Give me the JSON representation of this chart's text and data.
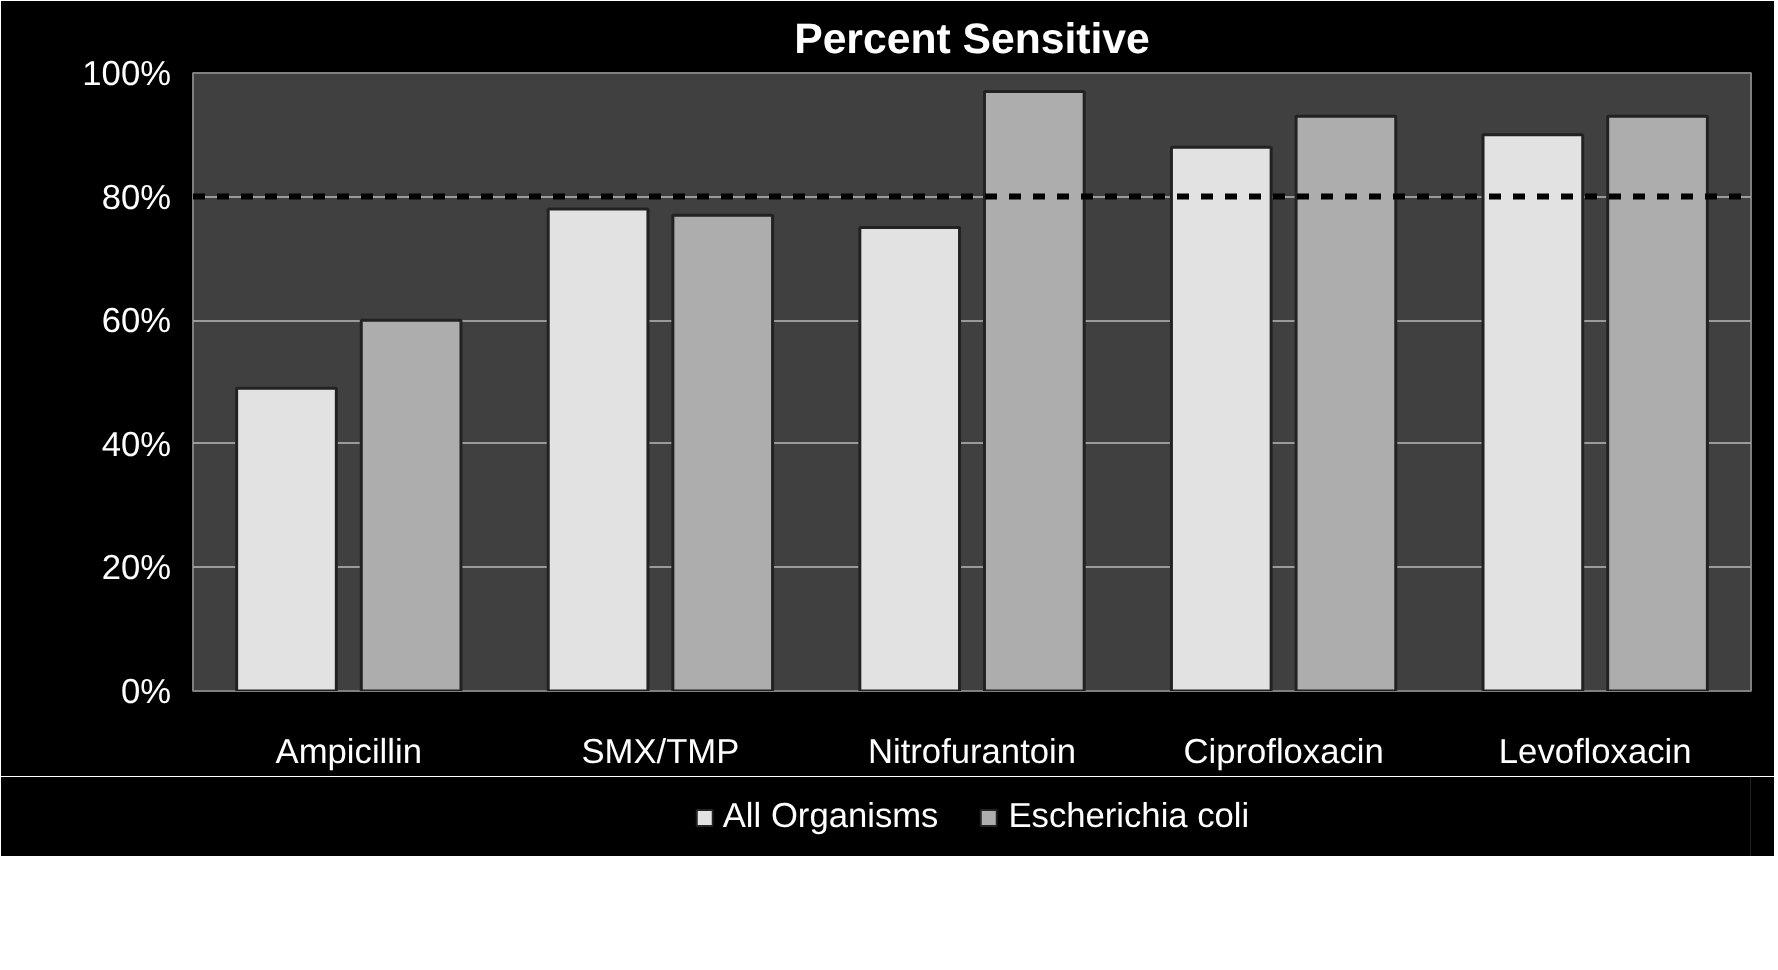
{
  "chart_data": {
    "type": "bar",
    "title": "Percent Sensitive",
    "categories": [
      "Ampicillin",
      "SMX/TMP",
      "Nitrofurantoin",
      "Ciprofloxacin",
      "Levofloxacin"
    ],
    "series": [
      {
        "name": "All Organisms",
        "color": "#e2e2e2",
        "values": [
          49,
          78,
          75,
          88,
          90
        ]
      },
      {
        "name": "Escherichia coli",
        "color": "#adadad",
        "values": [
          60,
          77,
          97,
          93,
          93
        ]
      }
    ],
    "ylim": [
      0,
      100
    ],
    "yticks": [
      {
        "value": 0,
        "label": "0%"
      },
      {
        "value": 20,
        "label": "20%"
      },
      {
        "value": 40,
        "label": "40%"
      },
      {
        "value": 60,
        "label": "60%"
      },
      {
        "value": 80,
        "label": "80%"
      },
      {
        "value": 100,
        "label": "100%"
      }
    ],
    "ref_lines": [
      {
        "axis": "y",
        "value": 80,
        "label": null,
        "color": "#000000",
        "line_style": "dashed"
      }
    ],
    "grid": "y",
    "legend": "bottom"
  }
}
